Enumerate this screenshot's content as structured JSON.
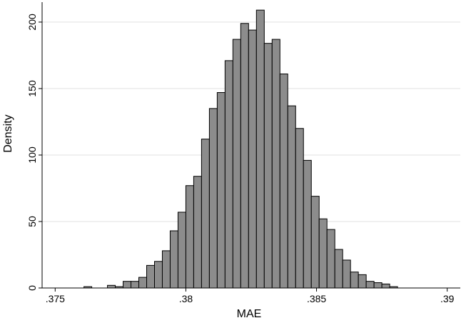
{
  "chart_data": {
    "type": "bar",
    "subtype": "histogram",
    "xlabel": "MAE",
    "ylabel": "Density",
    "xlim": [
      0.3745,
      0.3905
    ],
    "ylim": [
      0,
      215
    ],
    "x_ticks": [
      0.375,
      0.38,
      0.385,
      0.39
    ],
    "x_tick_labels": [
      ".375",
      ".38",
      ".385",
      ".39"
    ],
    "y_ticks": [
      0,
      50,
      100,
      150,
      200
    ],
    "y_tick_labels": [
      "0",
      "50",
      "100",
      "150",
      "200"
    ],
    "grid": "horizontal",
    "bar_color": "#8c8c8c",
    "bar_edge_color": "#000000",
    "bin_width": 0.0003,
    "bins": [
      {
        "start": 0.3761,
        "density": 1
      },
      {
        "start": 0.377,
        "density": 2
      },
      {
        "start": 0.3773,
        "density": 1
      },
      {
        "start": 0.3776,
        "density": 5
      },
      {
        "start": 0.3779,
        "density": 5
      },
      {
        "start": 0.3782,
        "density": 8
      },
      {
        "start": 0.3785,
        "density": 17
      },
      {
        "start": 0.3788,
        "density": 20
      },
      {
        "start": 0.3791,
        "density": 28
      },
      {
        "start": 0.3794,
        "density": 43
      },
      {
        "start": 0.3797,
        "density": 57
      },
      {
        "start": 0.38,
        "density": 77
      },
      {
        "start": 0.3803,
        "density": 84
      },
      {
        "start": 0.3806,
        "density": 112
      },
      {
        "start": 0.3809,
        "density": 135
      },
      {
        "start": 0.3812,
        "density": 147
      },
      {
        "start": 0.3815,
        "density": 171
      },
      {
        "start": 0.3818,
        "density": 187
      },
      {
        "start": 0.3821,
        "density": 199
      },
      {
        "start": 0.3824,
        "density": 194
      },
      {
        "start": 0.3827,
        "density": 209
      },
      {
        "start": 0.383,
        "density": 184
      },
      {
        "start": 0.3833,
        "density": 187
      },
      {
        "start": 0.3836,
        "density": 161
      },
      {
        "start": 0.3839,
        "density": 137
      },
      {
        "start": 0.3842,
        "density": 120
      },
      {
        "start": 0.3845,
        "density": 96
      },
      {
        "start": 0.3848,
        "density": 69
      },
      {
        "start": 0.3851,
        "density": 52
      },
      {
        "start": 0.3854,
        "density": 44
      },
      {
        "start": 0.3857,
        "density": 29
      },
      {
        "start": 0.386,
        "density": 21
      },
      {
        "start": 0.3863,
        "density": 12
      },
      {
        "start": 0.3866,
        "density": 10
      },
      {
        "start": 0.3869,
        "density": 5
      },
      {
        "start": 0.3872,
        "density": 4
      },
      {
        "start": 0.3875,
        "density": 3
      },
      {
        "start": 0.3878,
        "density": 1
      }
    ]
  }
}
